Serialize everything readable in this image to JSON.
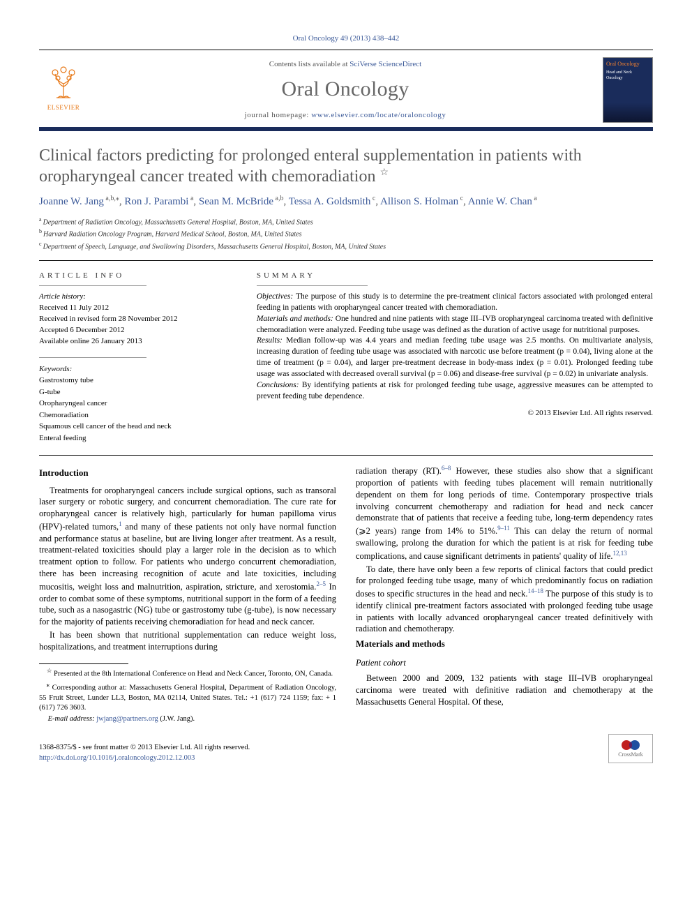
{
  "citation": {
    "journal": "Oral Oncology",
    "vol_pages": "49 (2013) 438–442"
  },
  "header": {
    "contents_prefix": "Contents lists available at ",
    "contents_link": "SciVerse ScienceDirect",
    "journal_name": "Oral Oncology",
    "homepage_prefix": "journal homepage: ",
    "homepage_url": "www.elsevier.com/locate/oraloncology",
    "publisher": "ELSEVIER",
    "cover_title": "Oral Oncology",
    "cover_sub": "Head and Neck Oncology",
    "colors": {
      "link": "#3b5998",
      "orange": "#e77817",
      "bar": "#1a2c5b",
      "title_gray": "#5a5a5a"
    }
  },
  "title": "Clinical factors predicting for prolonged enteral supplementation in patients with oropharyngeal cancer treated with chemoradiation",
  "title_note": "☆",
  "authors_html": "Joanne W. Jang",
  "authors": [
    {
      "name": "Joanne W. Jang",
      "aff": "a,b,",
      "corr": "⁎"
    },
    {
      "name": "Ron J. Parambi",
      "aff": "a"
    },
    {
      "name": "Sean M. McBride",
      "aff": "a,b"
    },
    {
      "name": "Tessa A. Goldsmith",
      "aff": "c"
    },
    {
      "name": "Allison S. Holman",
      "aff": "c"
    },
    {
      "name": "Annie W. Chan",
      "aff": "a"
    }
  ],
  "affiliations": [
    {
      "sup": "a",
      "text": "Department of Radiation Oncology, Massachusetts General Hospital, Boston, MA, United States"
    },
    {
      "sup": "b",
      "text": "Harvard Radiation Oncology Program, Harvard Medical School, Boston, MA, United States"
    },
    {
      "sup": "c",
      "text": "Department of Speech, Language, and Swallowing Disorders, Massachusetts General Hospital, Boston, MA, United States"
    }
  ],
  "article_info": {
    "header": "ARTICLE INFO",
    "history_label": "Article history:",
    "history": [
      "Received 11 July 2012",
      "Received in revised form 28 November 2012",
      "Accepted 6 December 2012",
      "Available online 26 January 2013"
    ],
    "keywords_label": "Keywords:",
    "keywords": [
      "Gastrostomy tube",
      "G-tube",
      "Oropharyngeal cancer",
      "Chemoradiation",
      "Squamous cell cancer of the head and neck",
      "Enteral feeding"
    ]
  },
  "summary": {
    "header": "SUMMARY",
    "sections": [
      {
        "label": "Objectives:",
        "text": "The purpose of this study is to determine the pre-treatment clinical factors associated with prolonged enteral feeding in patients with oropharyngeal cancer treated with chemoradiation."
      },
      {
        "label": "Materials and methods:",
        "text": "One hundred and nine patients with stage III–IVB oropharyngeal carcinoma treated with definitive chemoradiation were analyzed. Feeding tube usage was defined as the duration of active usage for nutritional purposes."
      },
      {
        "label": "Results:",
        "text": "Median follow-up was 4.4 years and median feeding tube usage was 2.5 months. On multivariate analysis, increasing duration of feeding tube usage was associated with narcotic use before treatment (p = 0.04), living alone at the time of treatment (p = 0.04), and larger pre-treatment decrease in body-mass index (p = 0.01). Prolonged feeding tube usage was associated with decreased overall survival (p = 0.06) and disease-free survival (p = 0.02) in univariate analysis."
      },
      {
        "label": "Conclusions:",
        "text": "By identifying patients at risk for prolonged feeding tube usage, aggressive measures can be attempted to prevent feeding tube dependence."
      }
    ],
    "copyright": "© 2013 Elsevier Ltd. All rights reserved."
  },
  "body": {
    "intro_h": "Introduction",
    "intro_p1a": "Treatments for oropharyngeal cancers include surgical options, such as transoral laser surgery or robotic surgery, and concurrent chemoradiation. The cure rate for oropharyngeal cancer is relatively high, particularly for human papilloma virus (HPV)-related tumors,",
    "intro_ref1": "1",
    "intro_p1b": " and many of these patients not only have normal function and performance status at baseline, but are living longer after treatment. As a result, treatment-related toxicities should play a larger role in the decision as to which treatment option to follow. For patients who undergo concurrent chemoradiation, there has been increasing recognition of acute and late toxicities, including mucositis, weight loss and malnutrition, aspiration, stricture, and xerostomia.",
    "intro_ref2": "2–5",
    "intro_p1c": " In order to combat some of these symptoms, nutritional support in the form of a feeding tube, such as a nasogastric (NG) tube or gastrostomy tube (g-tube), is now necessary for the majority of patients receiving chemoradiation for head and neck cancer.",
    "intro_p2a": "It has been shown that nutritional supplementation can reduce weight loss, hospitalizations, and treatment interruptions during ",
    "intro_p2b": "radiation therapy (RT).",
    "intro_ref3": "6–8",
    "intro_p2c": " However, these studies also show that a significant proportion of patients with feeding tubes placement will remain nutritionally dependent on them for long periods of time. Contemporary prospective trials involving concurrent chemotherapy and radiation for head and neck cancer demonstrate that of patients that receive a feeding tube, long-term dependency rates (⩾2 years) range from 14% to 51%.",
    "intro_ref4": "9–11",
    "intro_p2d": " This can delay the return of normal swallowing, prolong the duration for which the patient is at risk for feeding tube complications, and cause significant detriments in patients' quality of life.",
    "intro_ref5": "12,13",
    "intro_p3a": "To date, there have only been a few reports of clinical factors that could predict for prolonged feeding tube usage, many of which predominantly focus on radiation doses to specific structures in the head and neck.",
    "intro_ref6": "14–18",
    "intro_p3b": " The purpose of this study is to identify clinical pre-treatment factors associated with prolonged feeding tube usage in patients with locally advanced oropharyngeal cancer treated definitively with radiation and chemotherapy.",
    "mm_h": "Materials and methods",
    "cohort_h": "Patient cohort",
    "cohort_p": "Between 2000 and 2009, 132 patients with stage III–IVB oropharyngeal carcinoma were treated with definitive radiation and chemotherapy at the Massachusetts General Hospital. Of these,"
  },
  "footnotes": {
    "star": "☆",
    "star_text": "Presented at the 8th International Conference on Head and Neck Cancer, Toronto, ON, Canada.",
    "corr": "⁎",
    "corr_text": "Corresponding author at: Massachusetts General Hospital, Department of Radiation Oncology, 55 Fruit Street, Lunder LL3, Boston, MA 02114, United States. Tel.: +1 (617) 724 1159; fax: + 1 (617) 726 3603.",
    "email_label": "E-mail address:",
    "email": "jwjang@partners.org",
    "email_who": "(J.W. Jang)."
  },
  "footer": {
    "issn": "1368-8375/$ - see front matter © 2013 Elsevier Ltd. All rights reserved.",
    "doi": "http://dx.doi.org/10.1016/j.oraloncology.2012.12.003",
    "crossmark": "CrossMark"
  }
}
